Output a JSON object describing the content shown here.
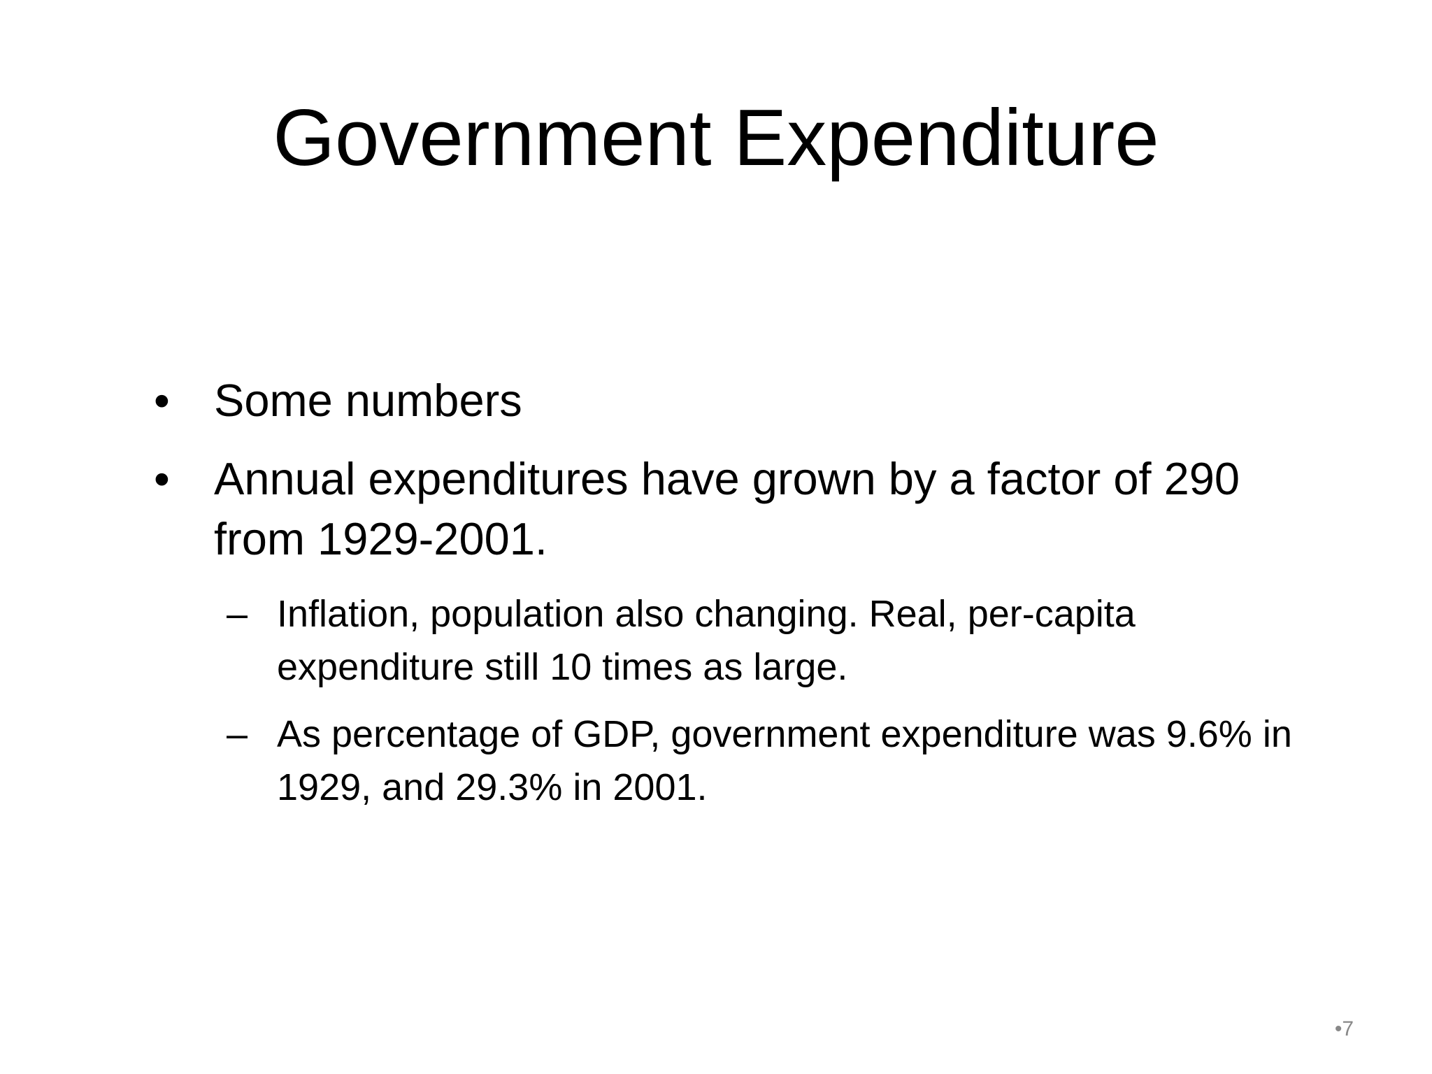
{
  "slide": {
    "title": "Government Expenditure",
    "bullets": [
      {
        "marker": "•",
        "text": "Some numbers"
      },
      {
        "marker": "•",
        "text": "Annual expenditures have grown by a factor of 290 from 1929-2001."
      }
    ],
    "sub_bullets": [
      {
        "marker": "–",
        "text": "Inflation, population also changing.  Real, per-capita expenditure still 10 times as large."
      },
      {
        "marker": "–",
        "text": "As percentage of GDP, government expenditure was 9.6% in 1929, and 29.3% in 2001."
      }
    ],
    "slide_number": "•7"
  }
}
